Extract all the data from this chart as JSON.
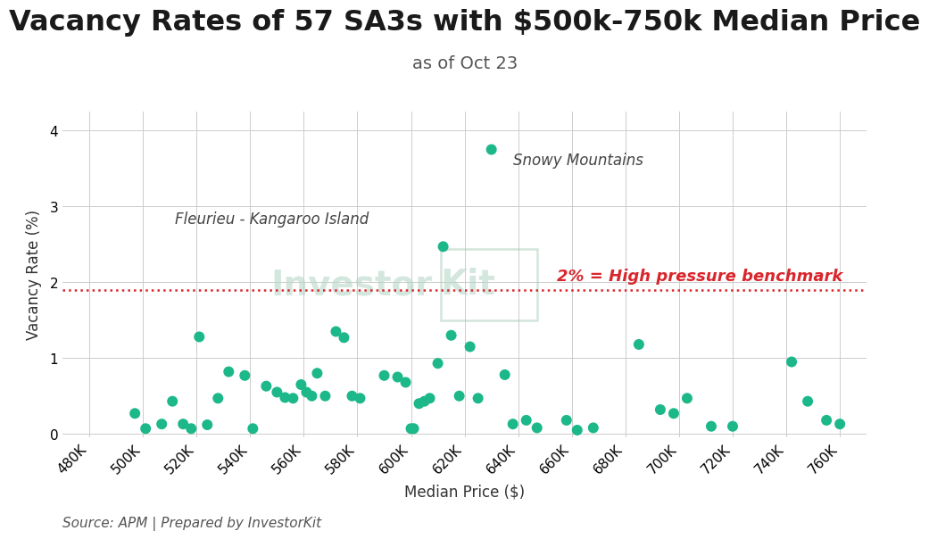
{
  "title": "Vacancy Rates of 57 SA3s with $500k-750k Median Price",
  "subtitle": "as of Oct 23",
  "xlabel": "Median Price ($)",
  "ylabel": "Vacancy Rate (%)",
  "source": "Source: APM | Prepared by InvestorKit",
  "dot_color": "#1db88a",
  "benchmark_y": 1.9,
  "benchmark_color": "#d9262c",
  "benchmark_label": "2% = High pressure benchmark",
  "watermark_text": "Investor",
  "watermark_text2": "Kit",
  "annotation_snowy": "Snowy Mountains",
  "annotation_fleurieu": "Fleurieu - Kangaroo Island",
  "xlim": [
    470000,
    770000
  ],
  "ylim": [
    -0.05,
    4.25
  ],
  "ytick_vals": [
    0,
    1,
    2,
    3,
    4
  ],
  "scatter_x": [
    497000,
    501000,
    507000,
    511000,
    515000,
    518000,
    521000,
    524000,
    528000,
    532000,
    538000,
    541000,
    546000,
    550000,
    553000,
    556000,
    559000,
    561000,
    563000,
    565000,
    568000,
    572000,
    575000,
    578000,
    581000,
    590000,
    595000,
    598000,
    600000,
    601000,
    603000,
    605000,
    607000,
    610000,
    612000,
    615000,
    618000,
    622000,
    625000,
    630000,
    635000,
    638000,
    643000,
    647000,
    658000,
    662000,
    668000,
    685000,
    693000,
    698000,
    703000,
    712000,
    720000,
    742000,
    748000,
    755000,
    760000
  ],
  "scatter_y": [
    0.27,
    0.07,
    0.13,
    0.43,
    0.13,
    0.07,
    1.28,
    0.12,
    0.47,
    0.82,
    0.77,
    0.07,
    0.63,
    0.55,
    0.48,
    0.47,
    0.65,
    0.55,
    0.5,
    0.8,
    0.5,
    1.35,
    1.27,
    0.5,
    0.47,
    0.77,
    0.75,
    0.68,
    0.07,
    0.07,
    0.4,
    0.43,
    0.47,
    0.93,
    2.47,
    1.3,
    0.5,
    1.15,
    0.47,
    3.75,
    0.78,
    0.13,
    0.18,
    0.08,
    0.18,
    0.05,
    0.08,
    1.18,
    0.32,
    0.27,
    0.47,
    0.1,
    0.1,
    0.95,
    0.43,
    0.18,
    0.13
  ],
  "snowy_x": 630000,
  "snowy_y": 3.75,
  "fleurieu_x": 512000,
  "fleurieu_y": 2.73,
  "background_color": "#ffffff",
  "grid_color": "#cccccc",
  "title_fontsize": 23,
  "subtitle_fontsize": 14,
  "label_fontsize": 12,
  "tick_fontsize": 11,
  "source_fontsize": 11,
  "dot_size": 75
}
